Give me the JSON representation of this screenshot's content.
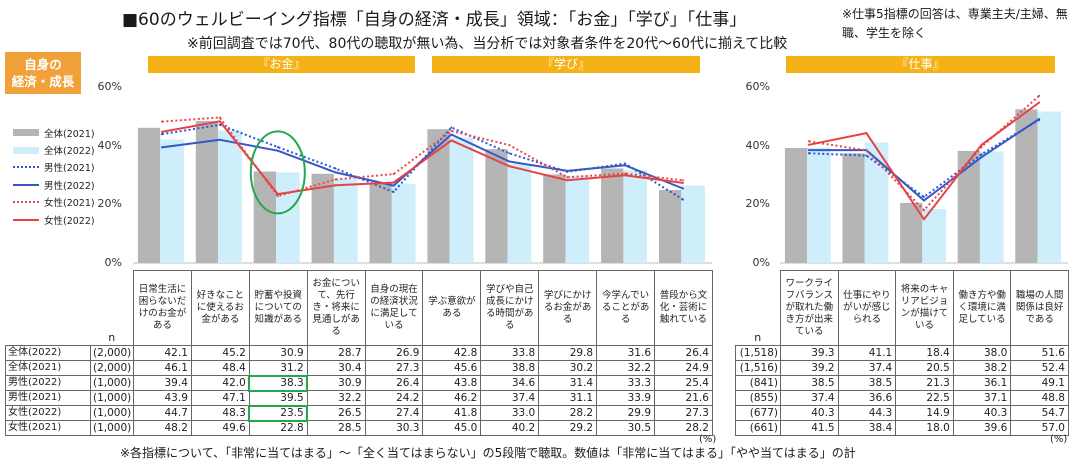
{
  "title": "■60のウェルビーイング指標「自身の経済・成長」領域：「お金」「学び」「仕事」",
  "subtitle": "※前回調査では70代、80代の聴取が無い為、当分析では対象者条件を20代～60代に揃えて比較",
  "note": "※仕事5指標の回答は、専業主夫/主婦、無職、学生を除く",
  "category_box": {
    "lines": [
      "自身の",
      "経済・成長"
    ]
  },
  "sections": [
    "『お金』",
    "『学び』",
    "『仕事』"
  ],
  "footer": "※各指標について、「非常に当てはまる」～「全く当てはまらない」の5段階で聴取。数値は「非常に当てはまる」「やや当てはまる」の計",
  "table": {
    "n_header": "n",
    "row_order": [
      1,
      0,
      3,
      2,
      5,
      4
    ]
  },
  "highlight": {
    "panel": 0,
    "category": 2,
    "series": [
      3,
      5
    ],
    "color": "#22a84a"
  },
  "chart_data": {
    "type": "bar+line",
    "ylim": [
      0,
      60
    ],
    "y_ticks": [
      "0%",
      "20%",
      "40%",
      "60%"
    ],
    "unit": "(%)",
    "series": [
      {
        "name": "全体(2021)",
        "bar": true,
        "dashed": false,
        "color": "#b5b5b5"
      },
      {
        "name": "全体(2022)",
        "bar": true,
        "dashed": false,
        "color": "#cdeefa"
      },
      {
        "name": "男性(2021)",
        "bar": false,
        "dashed": true,
        "color": "#2c56cf"
      },
      {
        "name": "男性(2022)",
        "bar": false,
        "dashed": false,
        "color": "#3558c6"
      },
      {
        "name": "女性(2021)",
        "bar": false,
        "dashed": true,
        "color": "#e8484b"
      },
      {
        "name": "女性(2022)",
        "bar": false,
        "dashed": false,
        "color": "#e54343"
      }
    ],
    "panels": [
      {
        "categories": [
          "日常生活に困らないだけのお金がある",
          "好きなことに使えるお金がある",
          "貯蓄や投資についての知識がある",
          "お金について、先行き・将来に見通しがある",
          "自身の現在の経済状況に満足している",
          "学ぶ意欲がある",
          "学びや自己成長にかける時間がある",
          "学びにかけるお金がある",
          "今学んでいることがある",
          "普段から文化・芸術に触れている"
        ],
        "n": [
          "(2,000)",
          "(2,000)",
          "(1,000)",
          "(1,000)",
          "(1,000)",
          "(1,000)"
        ],
        "values": [
          [
            46.1,
            48.4,
            31.2,
            30.4,
            27.3,
            45.6,
            38.8,
            30.2,
            32.2,
            24.9
          ],
          [
            42.1,
            45.2,
            30.9,
            28.7,
            26.9,
            42.8,
            33.8,
            29.8,
            31.6,
            26.4
          ],
          [
            43.9,
            47.1,
            39.5,
            32.2,
            24.2,
            46.2,
            37.4,
            31.1,
            33.9,
            21.6
          ],
          [
            39.4,
            42.0,
            38.3,
            30.9,
            26.4,
            43.8,
            34.6,
            31.4,
            33.3,
            25.4
          ],
          [
            48.2,
            49.6,
            22.8,
            28.5,
            30.3,
            45.0,
            40.2,
            29.2,
            30.5,
            28.2
          ],
          [
            44.7,
            48.3,
            23.5,
            26.5,
            27.4,
            41.8,
            33.0,
            28.2,
            29.9,
            27.3
          ]
        ]
      },
      {
        "categories": [
          "ワークライフバランスが取れた働き方が出来ている",
          "仕事にやりがいが感じられる",
          "将来のキャリアビジョンが描けている",
          "働き方や働く環境に満足している",
          "職場の人間関係は良好である"
        ],
        "n": [
          "(1,516)",
          "(1,518)",
          "(855)",
          "(841)",
          "(661)",
          "(677)"
        ],
        "values": [
          [
            39.2,
            37.4,
            20.5,
            38.2,
            52.4
          ],
          [
            39.3,
            41.1,
            18.4,
            38.0,
            51.6
          ],
          [
            37.4,
            36.6,
            22.5,
            37.1,
            48.8
          ],
          [
            38.5,
            38.5,
            21.3,
            36.1,
            49.1
          ],
          [
            41.5,
            38.4,
            18.0,
            39.6,
            57.0
          ],
          [
            40.3,
            44.3,
            14.9,
            40.3,
            54.7
          ]
        ]
      }
    ]
  }
}
